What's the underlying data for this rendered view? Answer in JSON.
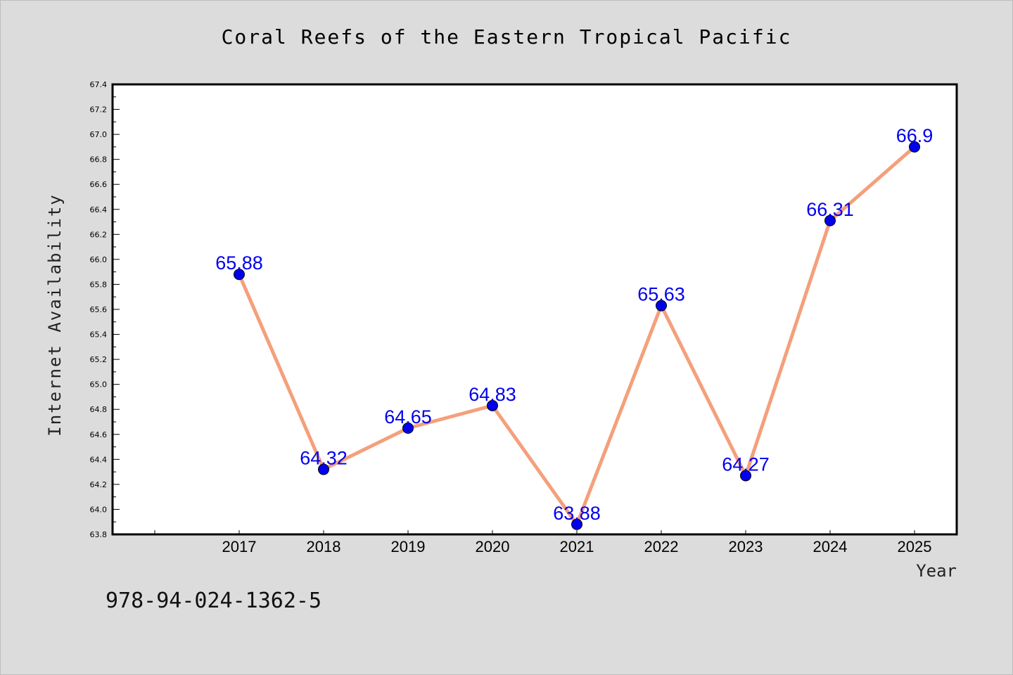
{
  "chart_data": {
    "type": "line",
    "title": "Coral Reefs of the Eastern Tropical Pacific",
    "xlabel": "Year",
    "ylabel": "Internet Availability",
    "x": [
      "2017",
      "2018",
      "2019",
      "2020",
      "2021",
      "2022",
      "2023",
      "2024",
      "2025"
    ],
    "series": [
      {
        "values": [
          65.88,
          64.32,
          64.65,
          64.83,
          63.88,
          65.63,
          64.27,
          66.31,
          66.9
        ],
        "data_labels": [
          "65.88",
          "64.32",
          "64.65",
          "64.83",
          "63.88",
          "65.63",
          "64.27",
          "66.31",
          "66.9"
        ]
      }
    ],
    "ylim": [
      63.8,
      67.4
    ],
    "yticks": [
      "63.8",
      "64.0",
      "64.2",
      "64.4",
      "64.6",
      "64.8",
      "65.0",
      "65.2",
      "65.4",
      "65.6",
      "65.8",
      "66.0",
      "66.2",
      "66.4",
      "66.6",
      "66.8",
      "67.0",
      "67.2",
      "67.4"
    ],
    "grid": false,
    "colors": {
      "line": "#f4a07c",
      "marker": "#0000ee",
      "data_label": "#0000ee",
      "plot_background": "#ffffff",
      "figure_background": "#dcdcdc"
    }
  },
  "footer_code": "978-94-024-1362-5"
}
